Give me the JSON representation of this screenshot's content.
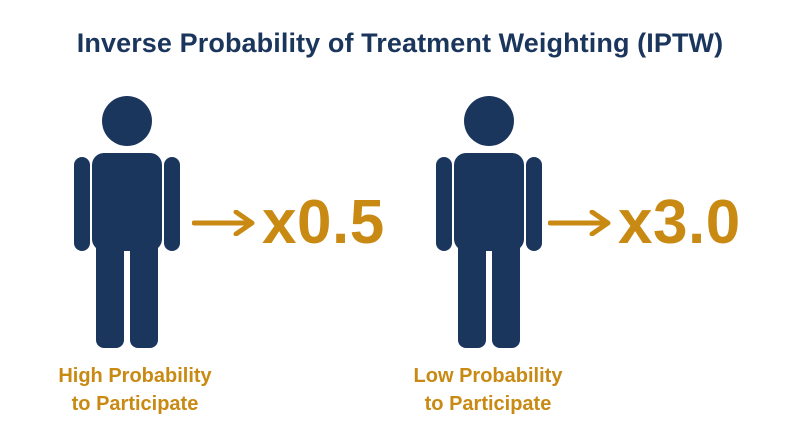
{
  "title": "Inverse Probability of Treatment Weighting (IPTW)",
  "colors": {
    "figure": "#1b365d",
    "accent": "#c98a14",
    "title": "#1b365d"
  },
  "groups": [
    {
      "icon": "person-icon",
      "weight": "x0.5",
      "label_line1": "High Probability",
      "label_line2": "to Participate"
    },
    {
      "icon": "person-icon",
      "weight": "x3.0",
      "label_line1": "Low Probability",
      "label_line2": "to Participate"
    }
  ]
}
